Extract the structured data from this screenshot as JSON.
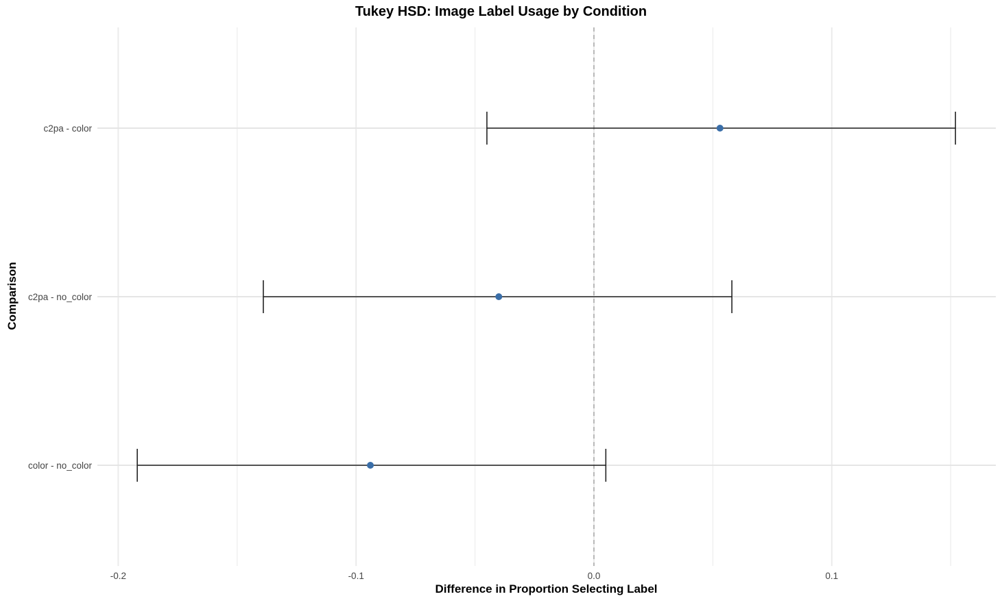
{
  "chart_data": {
    "type": "errorbar",
    "title": "Tukey HSD: Image Label Usage by Condition",
    "xlabel": "Difference in Proportion Selecting Label",
    "ylabel": "Comparison",
    "xlim": [
      -0.2,
      0.1
    ],
    "xticks": [
      -0.2,
      -0.1,
      0.0,
      0.1
    ],
    "xtick_labels": [
      "-0.2",
      "-0.1",
      "0.0",
      "0.1"
    ],
    "minor_gridlines": [
      -0.15,
      -0.05,
      0.05,
      0.15
    ],
    "reference_line": 0.0,
    "categories": [
      "c2pa - color",
      "c2pa - no_color",
      "color - no_color"
    ],
    "estimates": [
      0.053,
      -0.04,
      -0.094
    ],
    "lower": [
      -0.045,
      -0.139,
      -0.192
    ],
    "upper": [
      0.152,
      0.058,
      0.005
    ],
    "point_color": "#3a6ea8",
    "grid": true,
    "legend": "none"
  }
}
